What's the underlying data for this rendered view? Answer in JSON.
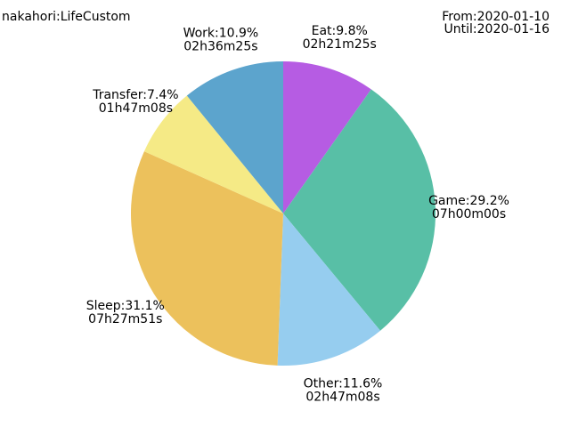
{
  "header": {
    "user_label": "nakahori:LifeCustom",
    "from_label": "From:2020-01-10",
    "until_label": "Until:2020-01-16"
  },
  "chart_data": {
    "type": "pie",
    "slices": [
      {
        "label": "Eat",
        "percent": 9.8,
        "duration": "02h21m25s",
        "color": "#b65ce3"
      },
      {
        "label": "Game",
        "percent": 29.2,
        "duration": "07h00m00s",
        "color": "#58bfa6"
      },
      {
        "label": "Other",
        "percent": 11.6,
        "duration": "02h47m08s",
        "color": "#96cdef"
      },
      {
        "label": "Sleep",
        "percent": 31.1,
        "duration": "07h27m51s",
        "color": "#ecc15c"
      },
      {
        "label": "Transfer",
        "percent": 7.4,
        "duration": "01h47m08s",
        "color": "#f5ea86"
      },
      {
        "label": "Work",
        "percent": 10.9,
        "duration": "02h36m25s",
        "color": "#5ca4cd"
      }
    ]
  }
}
